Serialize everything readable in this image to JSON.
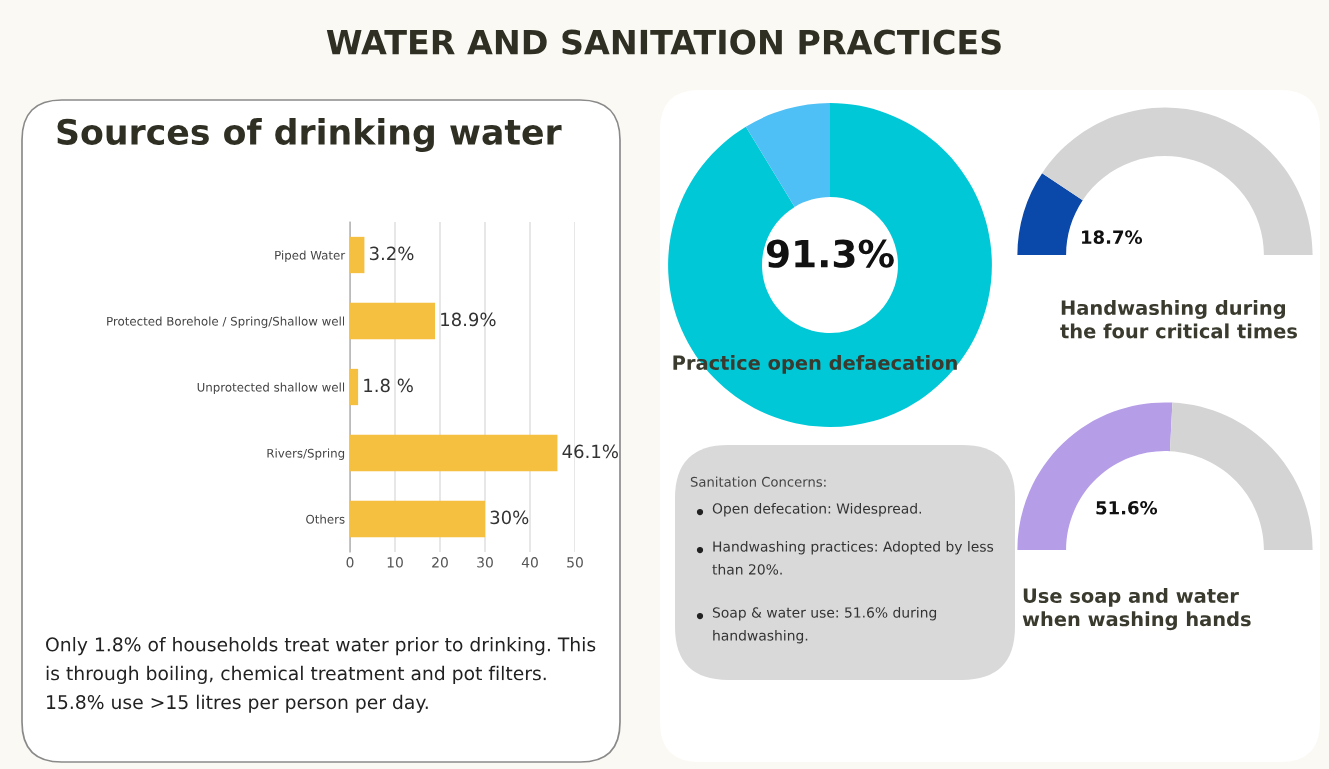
{
  "chart_data": [
    {
      "type": "bar",
      "orientation": "horizontal",
      "title": "WATER AND SANITATION PRACTICES",
      "subtitle": "Sources of drinking water",
      "categories": [
        "Piped Water",
        "Protected Borehole / Spring/Shallow well",
        "Unprotected shallow well",
        "Rivers/Spring",
        "Others"
      ],
      "values": [
        3.2,
        18.9,
        1.8,
        46.1,
        30
      ],
      "value_labels": [
        "3.2%",
        "18.9%",
        "1.8 %",
        "46.1%",
        "30%"
      ],
      "color": "#f5bf3f",
      "xlim": [
        0,
        50
      ],
      "xticks": [
        0,
        10,
        20,
        30,
        40,
        50
      ],
      "grid": "x",
      "legend": false,
      "annotations": [
        "Only 1.8% of households treat water prior to drinking. This is through boiling, chemical treatment and pot filters.  15.8% use >15 litres per person per day."
      ]
    },
    {
      "type": "donut",
      "title": "Practice open defaecation",
      "categories": [
        null,
        null
      ],
      "values": [
        91.3,
        8.7
      ],
      "colors": [
        "#00c8d7",
        "#4fc0f5"
      ],
      "value_labels": [
        "91.3%",
        null
      ],
      "legend": false
    },
    {
      "type": "donut",
      "title": "Handwashing during the four critical times",
      "categories": [
        null,
        null
      ],
      "values": [
        18.7,
        81.3
      ],
      "colors": [
        "#0a48a9",
        "#d4d4d4"
      ],
      "value_labels": [
        "18.7%",
        null
      ],
      "legend": false
    },
    {
      "type": "other",
      "title": "Sanitation Concerns:",
      "annotations": [
        "Open defecation: Widespread.",
        "Handwashing practices: Adopted by less than 20%.",
        "Soap & water use: 51.6% during handwashing."
      ]
    },
    {
      "type": "donut",
      "title": "Use soap and water when washing hands",
      "categories": [
        null,
        null
      ],
      "values": [
        51.6,
        48.4
      ],
      "colors": [
        "#b59de8",
        "#d4d4d4"
      ],
      "value_labels": [
        "51.6%",
        null
      ],
      "legend": false
    }
  ]
}
